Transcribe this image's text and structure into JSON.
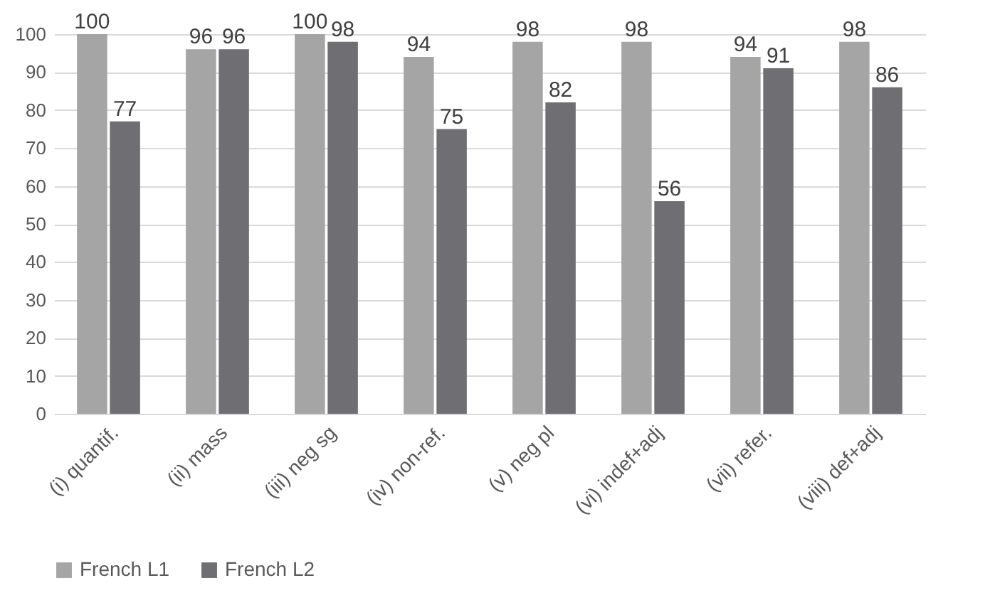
{
  "chart_data": {
    "type": "bar",
    "categories": [
      "(i) quantif.",
      "(ii) mass",
      "(iii) neg sg",
      "(iv) non-ref.",
      "(v) neg pl",
      "(vi) indef+adj",
      "(vii) refer.",
      "(viii) def+adj"
    ],
    "series": [
      {
        "name": "French L1",
        "color": "#a5a5a5",
        "values": [
          100,
          96,
          100,
          94,
          98,
          98,
          94,
          98
        ]
      },
      {
        "name": "French L2",
        "color": "#6f6f73",
        "values": [
          77,
          96,
          98,
          75,
          82,
          56,
          91,
          86
        ]
      }
    ],
    "ylim": [
      0,
      100
    ],
    "yticks": [
      0,
      10,
      20,
      30,
      40,
      50,
      60,
      70,
      80,
      90,
      100
    ],
    "grid": true,
    "data_labels": true,
    "legend": "bottom"
  }
}
